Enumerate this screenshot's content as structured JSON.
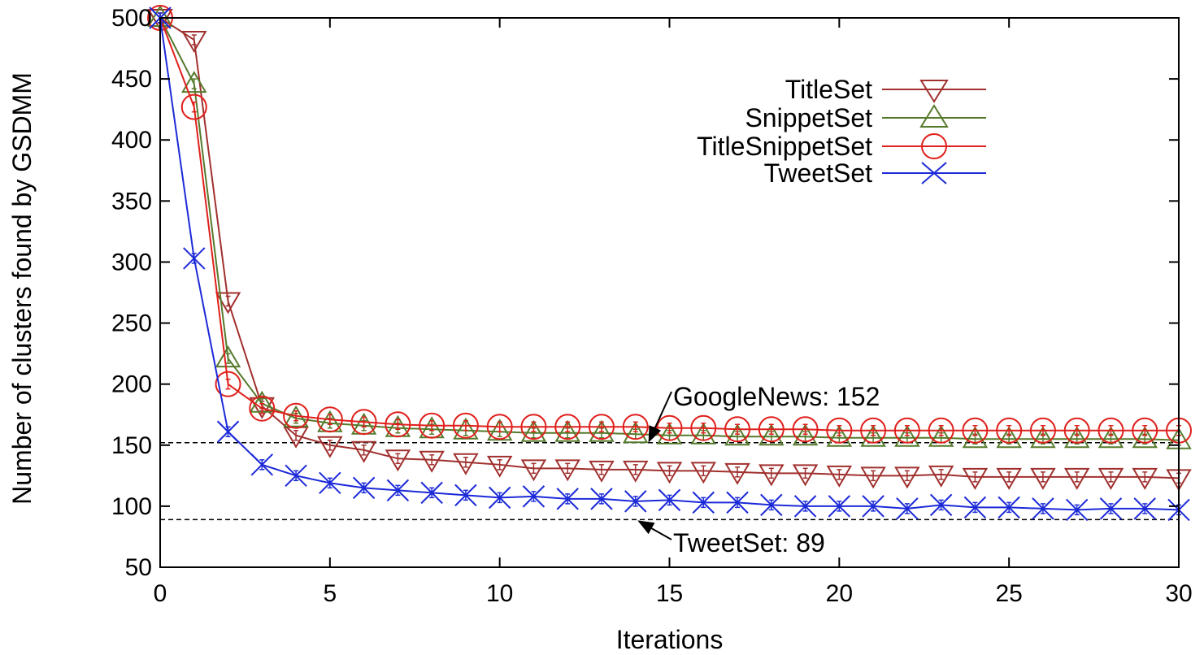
{
  "chart_data": {
    "type": "line",
    "title": "",
    "xlabel": "Iterations",
    "ylabel": "Number of clusters found by GSDMM",
    "xlim": [
      0,
      30
    ],
    "ylim": [
      50,
      500
    ],
    "xticks": [
      0,
      5,
      10,
      15,
      20,
      25,
      30
    ],
    "yticks": [
      50,
      100,
      150,
      200,
      250,
      300,
      350,
      400,
      450,
      500
    ],
    "grid": false,
    "legend_position": "top-right",
    "x": [
      0,
      1,
      2,
      3,
      4,
      5,
      6,
      7,
      8,
      9,
      10,
      11,
      12,
      13,
      14,
      15,
      16,
      17,
      18,
      19,
      20,
      21,
      22,
      23,
      24,
      25,
      26,
      27,
      28,
      29,
      30
    ],
    "series": [
      {
        "name": "TitleSet",
        "color": "#a0302e",
        "marker": "triangle-down",
        "values": [
          500,
          482,
          268,
          182,
          158,
          150,
          146,
          139,
          138,
          136,
          134,
          131,
          131,
          130,
          130,
          129,
          129,
          128,
          127,
          127,
          126,
          125,
          125,
          126,
          124,
          124,
          124,
          124,
          124,
          124,
          123
        ]
      },
      {
        "name": "SnippetSet",
        "color": "#557a2c",
        "marker": "triangle-up",
        "values": [
          500,
          446,
          221,
          184,
          172,
          168,
          166,
          164,
          163,
          162,
          161,
          160,
          160,
          160,
          159,
          158,
          158,
          157,
          157,
          157,
          156,
          156,
          156,
          156,
          155,
          155,
          155,
          155,
          155,
          155,
          154
        ]
      },
      {
        "name": "TitleSnippetSet",
        "color": "#e0201c",
        "marker": "circle",
        "values": [
          500,
          427,
          200,
          180,
          174,
          171,
          169,
          167,
          166,
          166,
          165,
          165,
          165,
          165,
          165,
          164,
          164,
          163,
          163,
          163,
          162,
          162,
          162,
          162,
          162,
          162,
          162,
          162,
          162,
          162,
          162
        ]
      },
      {
        "name": "TweetSet",
        "color": "#1c2ad8",
        "marker": "x",
        "values": [
          500,
          303,
          161,
          134,
          125,
          119,
          115,
          113,
          111,
          109,
          107,
          108,
          106,
          106,
          104,
          105,
          103,
          103,
          101,
          100,
          100,
          100,
          98,
          101,
          99,
          99,
          98,
          97,
          98,
          98,
          97
        ]
      }
    ],
    "reference_lines": [
      {
        "value": 152,
        "label": "GoogleNews: 152"
      },
      {
        "value": 89,
        "label": "TweetSet: 89"
      }
    ]
  }
}
